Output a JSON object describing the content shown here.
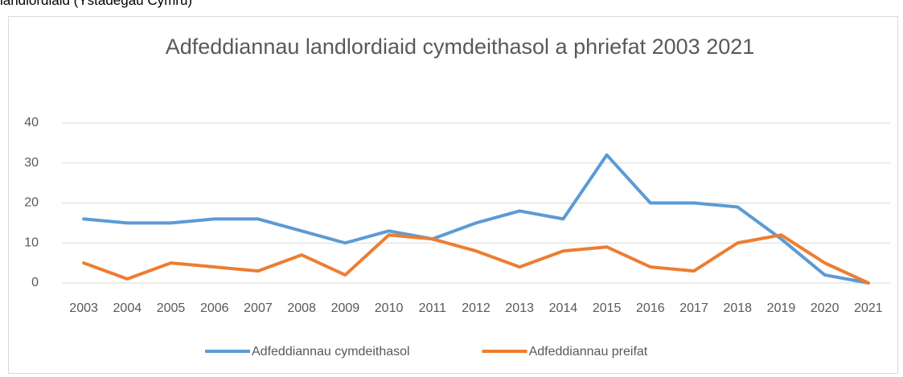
{
  "header": {
    "text": "landlordiaid (Ystadegau Cymru)"
  },
  "chart_data": {
    "type": "line",
    "title": "Adfeddiannau landlordiaid cymdeithasol a phriefat 2003 2021",
    "categories": [
      "2003",
      "2004",
      "2005",
      "2006",
      "2007",
      "2008",
      "2009",
      "2010",
      "2011",
      "2012",
      "2013",
      "2014",
      "2015",
      "2016",
      "2017",
      "2018",
      "2019",
      "2020",
      "2021"
    ],
    "series": [
      {
        "name": "Adfeddiannau cymdeithasol",
        "color": "#5b9bd5",
        "values": [
          16,
          15,
          15,
          16,
          16,
          13,
          10,
          13,
          11,
          15,
          18,
          16,
          32,
          20,
          20,
          19,
          11,
          2,
          0
        ]
      },
      {
        "name": "Adfeddiannau preifat",
        "color": "#ed7d31",
        "values": [
          5,
          1,
          5,
          4,
          3,
          7,
          2,
          12,
          11,
          8,
          4,
          8,
          9,
          4,
          3,
          10,
          12,
          5,
          0
        ]
      }
    ],
    "ylim": [
      0,
      40
    ],
    "yticks": [
      0,
      10,
      20,
      30,
      40
    ],
    "grid": true,
    "legend": "bottom"
  }
}
